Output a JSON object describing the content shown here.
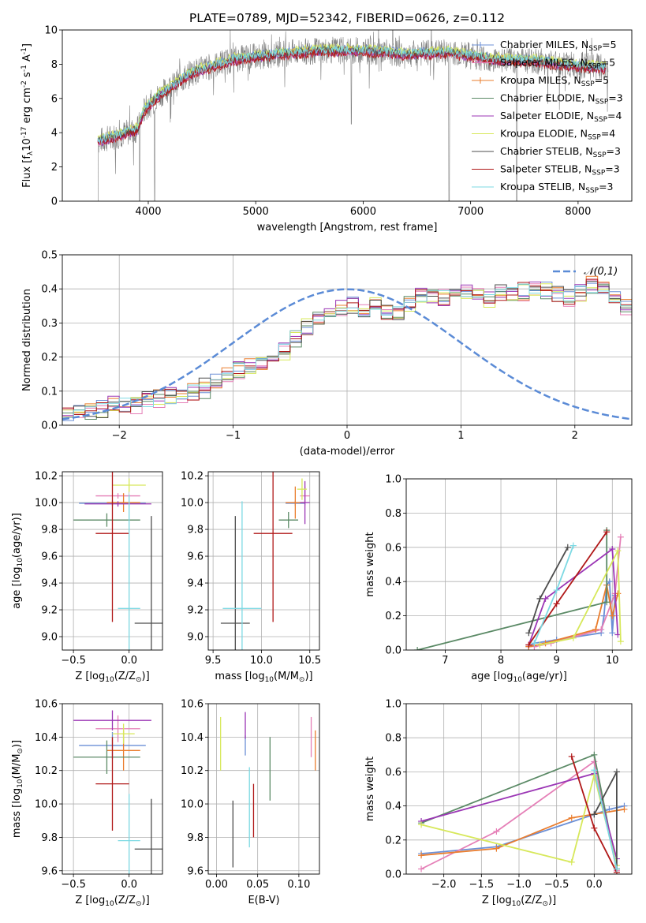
{
  "figure": {
    "title": "PLATE=0789, MJD=52342, FIBERID=0626, z=0.112",
    "series_names": [
      "Chabrier MILES, N$_{SSP}$=5",
      "Salpeter MILES, N$_{SSP}$=5",
      "Kroupa MILES, N$_{SSP}$=5",
      "Chabrier ELODIE, N$_{SSP}$=3",
      "Salpeter ELODIE, N$_{SSP}$=4",
      "Kroupa ELODIE, N$_{SSP}$=4",
      "Chabrier STELIB, N$_{SSP}$=3",
      "Salpeter STELIB, N$_{SSP}$=3",
      "Kroupa STELIB, N$_{SSP}$=3"
    ],
    "series_colors": [
      "#6b8fd6",
      "#e57fb7",
      "#ea7d2e",
      "#5b8a66",
      "#9b36b5",
      "#d7e85a",
      "#4d4d4d",
      "#b01818",
      "#7dd9e3"
    ]
  },
  "chart_data": [
    {
      "id": "spectrum",
      "type": "line",
      "title": "PLATE=0789, MJD=52342, FIBERID=0626, z=0.112",
      "xlabel": "wavelength [Angstrom, rest frame]",
      "ylabel": "Flux [f$_\\lambda$10$^{-17}$ erg cm$^{-2}$ s$^{-1}$ A$^{-1}$]",
      "xlim": [
        3200,
        8500
      ],
      "ylim": [
        0,
        10
      ],
      "xticks": [
        4000,
        5000,
        6000,
        7000,
        8000
      ],
      "yticks": [
        0,
        2,
        4,
        6,
        8,
        10
      ],
      "legend": "upper right",
      "data": {
        "color": "#808080",
        "x_range": [
          3530,
          8280
        ],
        "continuum": [
          [
            3530,
            3.5
          ],
          [
            3700,
            3.8
          ],
          [
            3900,
            4.2
          ],
          [
            3960,
            5.3
          ],
          [
            4100,
            6.2
          ],
          [
            4400,
            7.5
          ],
          [
            4800,
            8.3
          ],
          [
            5200,
            8.6
          ],
          [
            5600,
            8.8
          ],
          [
            6000,
            8.8
          ],
          [
            6400,
            8.6
          ],
          [
            6800,
            8.7
          ],
          [
            7200,
            8.3
          ],
          [
            7600,
            8.2
          ],
          [
            8000,
            7.9
          ],
          [
            8280,
            7.8
          ]
        ]
      },
      "models": {
        "x_range": [
          3530,
          8260
        ],
        "offsets": [
          0.1,
          -0.05,
          0.0,
          0.05,
          -0.1,
          0.15,
          0.0,
          -0.15,
          0.05
        ]
      },
      "dips": [
        [
          3530,
          0
        ],
        [
          3920,
          0
        ],
        [
          4060,
          0
        ],
        [
          5890,
          4.5
        ],
        [
          6800,
          0
        ],
        [
          7430,
          0
        ]
      ]
    },
    {
      "id": "residuals",
      "type": "histogram",
      "xlabel": "(data-model)/error",
      "ylabel": "Normed distribution",
      "xlim": [
        -2.5,
        2.5
      ],
      "ylim": [
        0,
        0.5
      ],
      "xticks": [
        -2,
        -1,
        0,
        1,
        2
      ],
      "yticks": [
        0.0,
        0.1,
        0.2,
        0.3,
        0.4,
        0.5
      ],
      "bin_width": 0.1,
      "bin_start": -2.5,
      "values": [
        0.03,
        0.035,
        0.04,
        0.045,
        0.055,
        0.06,
        0.065,
        0.075,
        0.08,
        0.085,
        0.09,
        0.1,
        0.115,
        0.13,
        0.15,
        0.16,
        0.17,
        0.18,
        0.195,
        0.22,
        0.26,
        0.29,
        0.31,
        0.335,
        0.34,
        0.345,
        0.34,
        0.36,
        0.33,
        0.33,
        0.36,
        0.375,
        0.38,
        0.38,
        0.385,
        0.39,
        0.375,
        0.37,
        0.39,
        0.385,
        0.39,
        0.4,
        0.395,
        0.385,
        0.37,
        0.39,
        0.41,
        0.4,
        0.38,
        0.345,
        0.33,
        0.325,
        0.31,
        0.3,
        0.28,
        0.265,
        0.25,
        0.24,
        0.22,
        0.21,
        0.19,
        0.18,
        0.17,
        0.165,
        0.15,
        0.13,
        0.11,
        0.1,
        0.09,
        0.075,
        0.065,
        0.06,
        0.055,
        0.05,
        0.04,
        0.035,
        0.035,
        0.03,
        0.03,
        0.03
      ],
      "reference": {
        "label": "$\\mathcal{N}(0,1)$",
        "color": "#5b8bd6",
        "mean": 0,
        "sigma": 1
      },
      "legend": "upper right"
    },
    {
      "id": "age-vs-Z",
      "type": "errorbar",
      "xlabel": "Z [log$_{10}$(Z/Z$_\\odot$)]",
      "ylabel": "age  [log$_{10}$(age/yr)]",
      "xlim": [
        -0.6,
        0.3
      ],
      "ylim": [
        8.9,
        10.23
      ],
      "xticks": [
        -0.5,
        0.0
      ],
      "yticks": [
        9.0,
        9.2,
        9.4,
        9.6,
        9.8,
        10.0,
        10.2
      ],
      "points": [
        {
          "x": -0.15,
          "xerr": 0.3,
          "y": 9.995,
          "yerr": 0.02
        },
        {
          "x": -0.1,
          "xerr": 0.2,
          "y": 10.05,
          "yerr": 0.02
        },
        {
          "x": -0.05,
          "xerr": 0.15,
          "y": 10.0,
          "yerr": 0.07
        },
        {
          "x": -0.2,
          "xerr": 0.3,
          "y": 9.87,
          "yerr": 0.05
        },
        {
          "x": -0.1,
          "xerr": 0.3,
          "y": 9.99,
          "yerr": 0.02
        },
        {
          "x": 0.0,
          "xerr": 0.15,
          "y": 10.13,
          "yerr": 0.05
        },
        {
          "x": 0.2,
          "xerr": 0.15,
          "y": 9.1,
          "yerr": 0.8
        },
        {
          "x": -0.15,
          "xerr": 0.15,
          "y": 9.77,
          "yerr": 0.66
        },
        {
          "x": 0.0,
          "xerr": 0.1,
          "y": 9.21,
          "yerr": 0.85
        }
      ]
    },
    {
      "id": "age-vs-mass",
      "type": "errorbar",
      "xlabel": "mass [log$_{10}$(M/M$_\\odot$)]",
      "ylabel": "",
      "xlim": [
        9.45,
        10.6
      ],
      "ylim": [
        8.9,
        10.23
      ],
      "xticks": [
        9.5,
        10.0,
        10.5
      ],
      "yticks": [
        9.0,
        9.2,
        9.4,
        9.6,
        9.8,
        10.0,
        10.2
      ],
      "points": [
        {
          "x": 10.35,
          "xerr": 0.1,
          "y": 9.995,
          "yerr": 0.02
        },
        {
          "x": 10.45,
          "xerr": 0.05,
          "y": 10.05,
          "yerr": 0.07
        },
        {
          "x": 10.35,
          "xerr": 0.1,
          "y": 10.0,
          "yerr": 0.12
        },
        {
          "x": 10.28,
          "xerr": 0.1,
          "y": 9.87,
          "yerr": 0.06
        },
        {
          "x": 10.45,
          "xerr": 0.05,
          "y": 10.0,
          "yerr": 0.16
        },
        {
          "x": 10.42,
          "xerr": 0.05,
          "y": 10.1,
          "yerr": 0.08
        },
        {
          "x": 9.73,
          "xerr": 0.15,
          "y": 9.1,
          "yerr": 0.8
        },
        {
          "x": 10.12,
          "xerr": 0.2,
          "y": 9.77,
          "yerr": 0.66
        },
        {
          "x": 9.8,
          "xerr": 0.2,
          "y": 9.21,
          "yerr": 0.8
        }
      ]
    },
    {
      "id": "weight-vs-age",
      "type": "line",
      "xlabel": "age  [log$_{10}$(age/yr)]",
      "ylabel": "mass weight",
      "xlim": [
        6.3,
        10.35
      ],
      "ylim": [
        0,
        1.0
      ],
      "xticks": [
        7,
        8,
        9,
        10
      ],
      "yticks": [
        0.0,
        0.2,
        0.4,
        0.6,
        0.8,
        1.0
      ],
      "series": [
        {
          "x": [
            8.5,
            8.6,
            9.0,
            9.8,
            9.85,
            9.9,
            9.95,
            10.0,
            10.05
          ],
          "y": [
            0.02,
            0.04,
            0.06,
            0.1,
            0.2,
            0.38,
            0.4,
            0.1,
            0.32
          ]
        },
        {
          "x": [
            8.6,
            8.9,
            9.8,
            10.05,
            10.15
          ],
          "y": [
            0.02,
            0.04,
            0.12,
            0.33,
            0.66
          ]
        },
        {
          "x": [
            8.5,
            8.8,
            9.7,
            9.9,
            10.0,
            10.1
          ],
          "y": [
            0.02,
            0.04,
            0.12,
            0.38,
            0.2,
            0.33
          ]
        },
        {
          "x": [
            6.5,
            9.9,
            9.9
          ],
          "y": [
            0.0,
            0.28,
            0.7
          ]
        },
        {
          "x": [
            8.5,
            8.8,
            10.0,
            10.1
          ],
          "y": [
            0.03,
            0.3,
            0.59,
            0.09
          ]
        },
        {
          "x": [
            8.7,
            9.3,
            10.1,
            10.15
          ],
          "y": [
            0.03,
            0.07,
            0.58,
            0.05
          ]
        },
        {
          "x": [
            8.5,
            8.7,
            9.2
          ],
          "y": [
            0.1,
            0.3,
            0.6
          ]
        },
        {
          "x": [
            8.5,
            9.0,
            9.9
          ],
          "y": [
            0.03,
            0.27,
            0.69
          ]
        },
        {
          "x": [
            8.6,
            9.0,
            9.3
          ],
          "y": [
            0.04,
            0.35,
            0.61
          ]
        }
      ]
    },
    {
      "id": "mass-vs-Z",
      "type": "errorbar",
      "xlabel": "Z [log$_{10}$(Z/Z$_\\odot$)]",
      "ylabel": "mass [log$_{10}$(M/M$_\\odot$)]",
      "xlim": [
        -0.6,
        0.3
      ],
      "ylim": [
        9.58,
        10.6
      ],
      "xticks": [
        -0.5,
        0.0
      ],
      "yticks": [
        9.6,
        9.8,
        10.0,
        10.2,
        10.4,
        10.6
      ],
      "points": [
        {
          "x": -0.15,
          "xerr": 0.3,
          "y": 10.35,
          "yerr": 0.08
        },
        {
          "x": -0.1,
          "xerr": 0.2,
          "y": 10.45,
          "yerr": 0.08
        },
        {
          "x": -0.05,
          "xerr": 0.15,
          "y": 10.32,
          "yerr": 0.12
        },
        {
          "x": -0.2,
          "xerr": 0.3,
          "y": 10.28,
          "yerr": 0.1
        },
        {
          "x": -0.15,
          "xerr": 0.35,
          "y": 10.5,
          "yerr": 0.06
        },
        {
          "x": -0.05,
          "xerr": 0.1,
          "y": 10.42,
          "yerr": 0.06
        },
        {
          "x": 0.2,
          "xerr": 0.15,
          "y": 9.73,
          "yerr": 0.3
        },
        {
          "x": -0.15,
          "xerr": 0.15,
          "y": 10.12,
          "yerr": 0.28
        },
        {
          "x": 0.0,
          "xerr": 0.1,
          "y": 9.78,
          "yerr": 0.28
        }
      ]
    },
    {
      "id": "mass-vs-EBV",
      "type": "errorbar",
      "xlabel": "E(B-V)",
      "ylabel": "",
      "xlim": [
        -0.01,
        0.125
      ],
      "ylim": [
        9.58,
        10.6
      ],
      "xticks": [
        0.0,
        0.05,
        0.1
      ],
      "yticks": [
        9.6,
        9.8,
        10.0,
        10.2,
        10.4,
        10.6
      ],
      "points": [
        {
          "x": 0.035,
          "xerr": 0,
          "y": 10.35,
          "yerr": 0.06
        },
        {
          "x": 0.115,
          "xerr": 0,
          "y": 10.4,
          "yerr": 0.12
        },
        {
          "x": 0.12,
          "xerr": 0,
          "y": 10.32,
          "yerr": 0.12
        },
        {
          "x": 0.065,
          "xerr": 0,
          "y": 10.21,
          "yerr": 0.19
        },
        {
          "x": 0.035,
          "xerr": 0,
          "y": 10.47,
          "yerr": 0.08
        },
        {
          "x": 0.005,
          "xerr": 0,
          "y": 10.36,
          "yerr": 0.16
        },
        {
          "x": 0.02,
          "xerr": 0,
          "y": 9.82,
          "yerr": 0.2
        },
        {
          "x": 0.045,
          "xerr": 0,
          "y": 9.96,
          "yerr": 0.16
        },
        {
          "x": 0.04,
          "xerr": 0,
          "y": 9.98,
          "yerr": 0.24
        }
      ]
    },
    {
      "id": "weight-vs-Z",
      "type": "line",
      "xlabel": "Z [log$_{10}$(Z/Z$_\\odot$)]",
      "ylabel": "mass weight",
      "xlim": [
        -2.5,
        0.5
      ],
      "ylim": [
        0,
        1.0
      ],
      "xticks": [
        -2.0,
        -1.5,
        -1.0,
        -0.5,
        0.0
      ],
      "yticks": [
        0.0,
        0.2,
        0.4,
        0.6,
        0.8,
        1.0
      ],
      "series": [
        {
          "x": [
            -2.3,
            -1.3,
            0.0,
            0.2,
            0.4
          ],
          "y": [
            0.12,
            0.16,
            0.35,
            0.38,
            0.4
          ]
        },
        {
          "x": [
            -2.3,
            -1.3,
            0.0,
            0.3
          ],
          "y": [
            0.03,
            0.25,
            0.66,
            0.02
          ]
        },
        {
          "x": [
            -2.3,
            -1.3,
            -0.3,
            0.4
          ],
          "y": [
            0.11,
            0.15,
            0.33,
            0.38
          ]
        },
        {
          "x": [
            -2.3,
            0.0,
            0.3
          ],
          "y": [
            0.3,
            0.7,
            0.03
          ]
        },
        {
          "x": [
            -2.3,
            0.0,
            0.3
          ],
          "y": [
            0.31,
            0.59,
            0.09
          ]
        },
        {
          "x": [
            -2.3,
            -0.3,
            0.0,
            0.3
          ],
          "y": [
            0.29,
            0.07,
            0.58,
            0.05
          ]
        },
        {
          "x": [
            0.0,
            0.3,
            0.3
          ],
          "y": [
            0.35,
            0.6,
            0.03
          ]
        },
        {
          "x": [
            -0.3,
            0.0,
            0.3
          ],
          "y": [
            0.69,
            0.27,
            0.01
          ]
        },
        {
          "x": [
            0.0,
            0.3
          ],
          "y": [
            0.61,
            0.03
          ]
        }
      ]
    }
  ]
}
